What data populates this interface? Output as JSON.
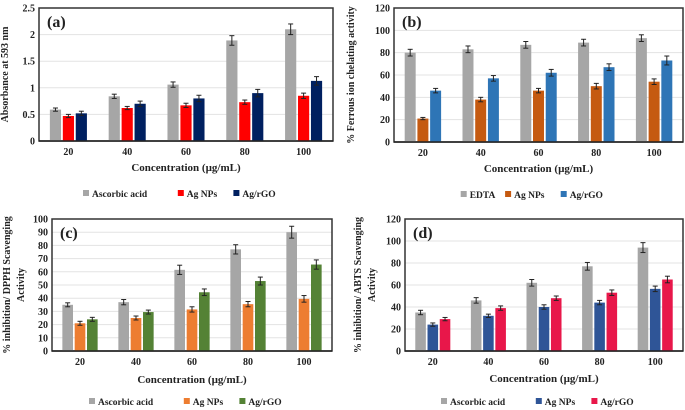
{
  "chart_data": [
    {
      "type": "bar",
      "panel_label": "(a)",
      "xlabel": "Concentration (µg/mL)",
      "ylabel": "Absorbance at 593 nm",
      "categories": [
        "20",
        "40",
        "60",
        "80",
        "100"
      ],
      "ylim": [
        0,
        2.5
      ],
      "yticks": [
        "0",
        "0.5",
        "1",
        "1.5",
        "2",
        "2.5"
      ],
      "grid": true,
      "legend_position": "bottom",
      "series": [
        {
          "name": "Ascorbic acid",
          "color": "#a6a6a6",
          "values": [
            0.59,
            0.84,
            1.06,
            1.89,
            2.1
          ],
          "errors": [
            0.03,
            0.04,
            0.05,
            0.09,
            0.1
          ]
        },
        {
          "name": "Ag NPs",
          "color": "#ff0000",
          "values": [
            0.47,
            0.62,
            0.67,
            0.73,
            0.85
          ],
          "errors": [
            0.03,
            0.03,
            0.04,
            0.04,
            0.05
          ]
        },
        {
          "name": "Ag/rGO",
          "color": "#002060",
          "values": [
            0.52,
            0.7,
            0.8,
            0.9,
            1.13
          ],
          "errors": [
            0.04,
            0.05,
            0.06,
            0.07,
            0.08
          ]
        }
      ]
    },
    {
      "type": "bar",
      "panel_label": "(b)",
      "xlabel": "Concentration (µg/mL)",
      "ylabel": "% Ferrous ion chelating activity",
      "categories": [
        "20",
        "40",
        "60",
        "80",
        "100"
      ],
      "ylim": [
        0,
        120
      ],
      "yticks": [
        "0",
        "20",
        "40",
        "60",
        "80",
        "100",
        "120"
      ],
      "grid": true,
      "legend_position": "bottom",
      "series": [
        {
          "name": "EDTA",
          "color": "#a6a6a6",
          "values": [
            80,
            83,
            87,
            89,
            93
          ],
          "errors": [
            3,
            3,
            3,
            3,
            3
          ]
        },
        {
          "name": "Ag NPs",
          "color": "#c55a11",
          "values": [
            21,
            38,
            46,
            50,
            54
          ],
          "errors": [
            1,
            2,
            2,
            2.5,
            2.5
          ]
        },
        {
          "name": "Ag/rGO",
          "color": "#2e75b6",
          "values": [
            46,
            57,
            62,
            67,
            73
          ],
          "errors": [
            2,
            2.5,
            3,
            3,
            4
          ]
        }
      ]
    },
    {
      "type": "bar",
      "panel_label": "(c)",
      "xlabel": "Concentration (µg/mL)",
      "ylabel": "% inhibition/ DPPH Scavenging Activity",
      "categories": [
        "20",
        "40",
        "60",
        "80",
        "100"
      ],
      "ylim": [
        0,
        100
      ],
      "yticks": [
        "0",
        "10",
        "20",
        "30",
        "40",
        "50",
        "60",
        "70",
        "80",
        "90",
        "100"
      ],
      "grid": true,
      "legend_position": "bottom",
      "series": [
        {
          "name": "Ascorbic acid",
          "color": "#a6a6a6",
          "values": [
            35,
            37,
            61.5,
            77,
            90
          ],
          "errors": [
            1.5,
            2,
            3.5,
            3.5,
            4.5
          ]
        },
        {
          "name": "Ag NPs",
          "color": "#ed7d31",
          "values": [
            21,
            25,
            31.5,
            35.5,
            39.5
          ],
          "errors": [
            1.5,
            1.5,
            2,
            2,
            2.5
          ]
        },
        {
          "name": "Ag/rGO",
          "color": "#548235",
          "values": [
            24,
            29.5,
            44.5,
            53,
            65.5
          ],
          "errors": [
            1.5,
            1.5,
            2.5,
            3,
            3.5
          ]
        }
      ]
    },
    {
      "type": "bar",
      "panel_label": "(d)",
      "xlabel": "Concentration (µg/mL)",
      "ylabel": "% inhibition/ ABTS Scavenging Activity",
      "categories": [
        "20",
        "40",
        "60",
        "80",
        "100"
      ],
      "ylim": [
        0,
        120
      ],
      "yticks": [
        "0",
        "20",
        "40",
        "60",
        "80",
        "100",
        "120"
      ],
      "grid": true,
      "legend_position": "bottom",
      "series": [
        {
          "name": "Ascorbic acid",
          "color": "#a6a6a6",
          "values": [
            35,
            46,
            62,
            77,
            94
          ],
          "errors": [
            2,
            2.5,
            3,
            3.5,
            4.5
          ]
        },
        {
          "name": "Ag NPs",
          "color": "#2f5597",
          "values": [
            24,
            32,
            40,
            44,
            56.5
          ],
          "errors": [
            1.5,
            1.5,
            2,
            2,
            2.5
          ]
        },
        {
          "name": "Ag/rGO",
          "color": "#e8174a",
          "values": [
            29,
            39,
            48,
            53,
            65
          ],
          "errors": [
            1.5,
            2,
            2,
            2.5,
            3
          ]
        }
      ]
    }
  ]
}
